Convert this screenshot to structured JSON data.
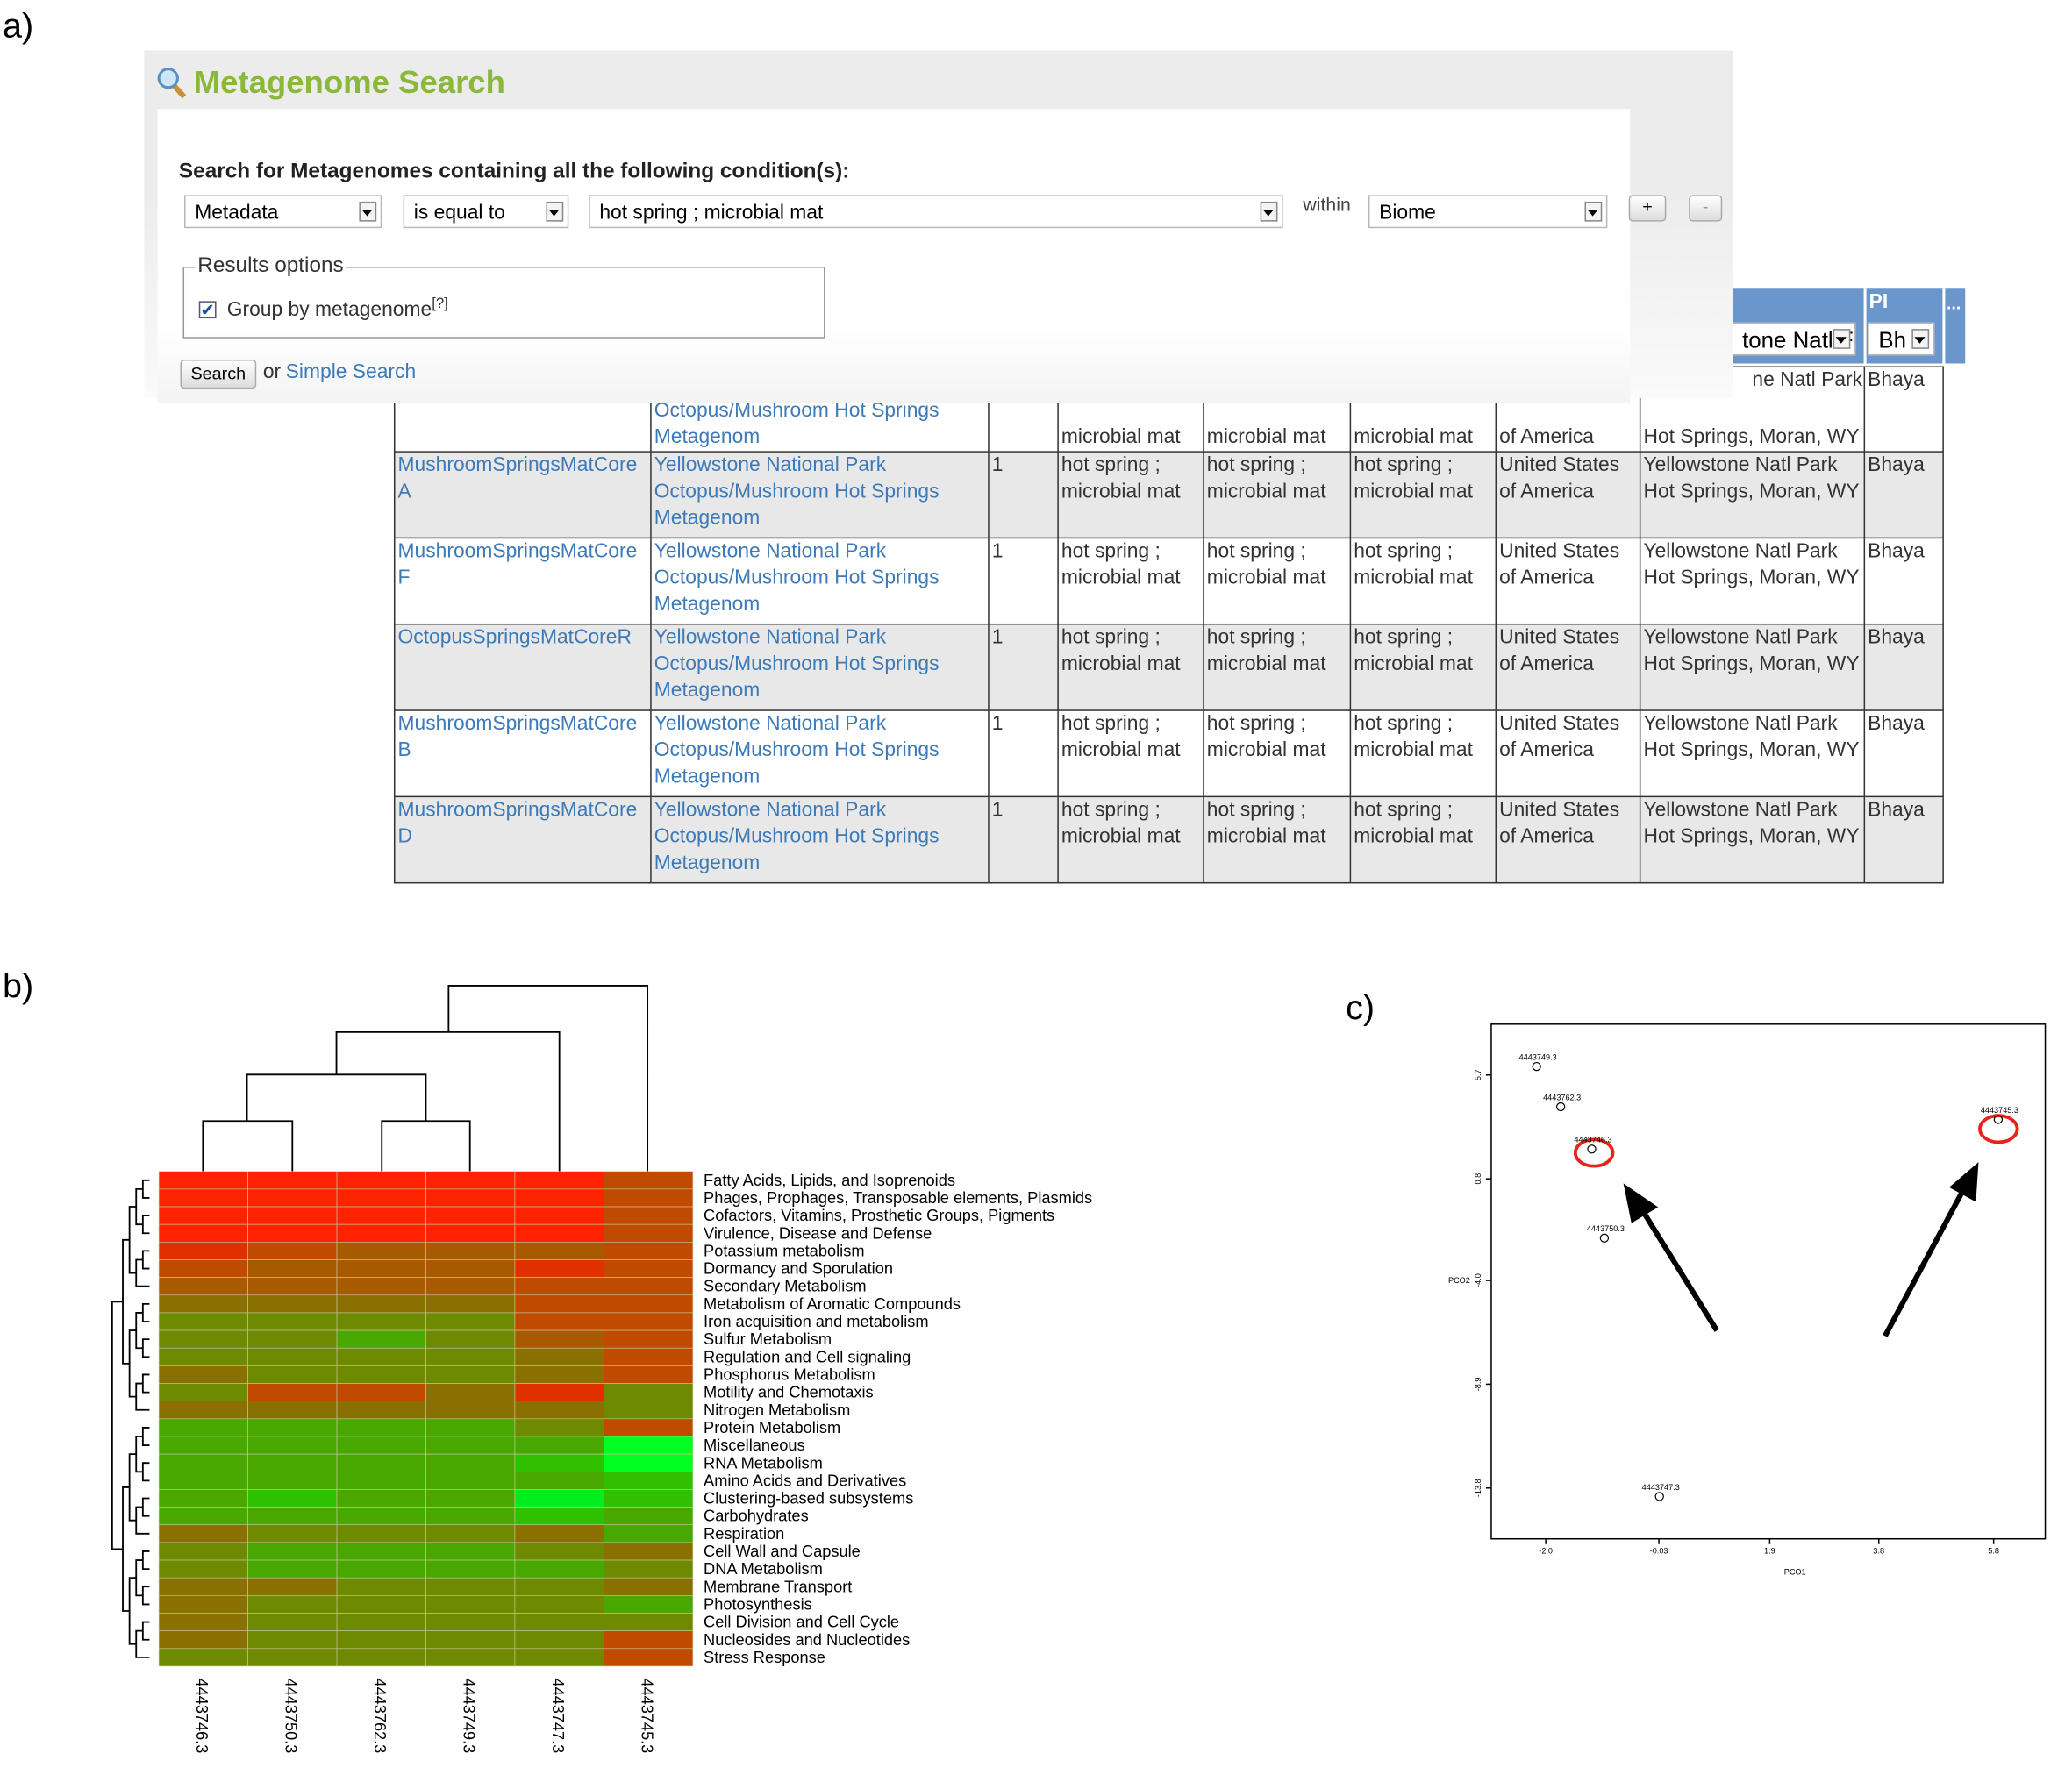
{
  "panel_labels": [
    "a)",
    "b)",
    "c)"
  ],
  "search": {
    "title": "Metagenome Search",
    "prompt": "Search for Metagenomes containing all the following condition(s):",
    "field": "Metadata",
    "operator": "is equal to",
    "value": "hot spring ; microbial mat",
    "within": "within",
    "scope": "Biome",
    "add": "+",
    "remove": "-",
    "results_legend": "Results options",
    "group_label": "Group by metagenome",
    "help": "[?]",
    "button": "Search",
    "or": "or",
    "simple_link": "Simple Search"
  },
  "table": {
    "header": {
      "pi": "PI",
      "more": "...",
      "filter_location": "tone Natl F",
      "filter_pi": "Bh",
      "location_fragment": "ne Natl Park",
      "pi_fragment": "Bhaya"
    },
    "partial_row": [
      null,
      "Octopus/Mushroom Hot Springs Metagenom",
      null,
      "microbial mat",
      "microbial mat",
      "microbial mat",
      "of America",
      "Hot Springs, Moran, WY",
      null
    ],
    "rows": [
      [
        "MushroomSpringsMatCoreA",
        "Yellowstone National Park Octopus/Mushroom Hot Springs Metagenom",
        "1",
        "hot spring ; microbial mat",
        "hot spring ; microbial mat",
        "hot spring ; microbial mat",
        "United States of America",
        "Yellowstone Natl Park Hot Springs, Moran, WY",
        "Bhaya"
      ],
      [
        "MushroomSpringsMatCoreF",
        "Yellowstone National Park Octopus/Mushroom Hot Springs Metagenom",
        "1",
        "hot spring ; microbial mat",
        "hot spring ; microbial mat",
        "hot spring ; microbial mat",
        "United States of America",
        "Yellowstone Natl Park Hot Springs, Moran, WY",
        "Bhaya"
      ],
      [
        "OctopusSpringsMatCoreR",
        "Yellowstone National Park Octopus/Mushroom Hot Springs Metagenom",
        "1",
        "hot spring ; microbial mat",
        "hot spring ; microbial mat",
        "hot spring ; microbial mat",
        "United States of America",
        "Yellowstone Natl Park Hot Springs, Moran, WY",
        "Bhaya"
      ],
      [
        "MushroomSpringsMatCoreB",
        "Yellowstone National Park Octopus/Mushroom Hot Springs Metagenom",
        "1",
        "hot spring ; microbial mat",
        "hot spring ; microbial mat",
        "hot spring ; microbial mat",
        "United States of America",
        "Yellowstone Natl Park Hot Springs, Moran, WY",
        "Bhaya"
      ],
      [
        "MushroomSpringsMatCoreD",
        "Yellowstone National Park Octopus/Mushroom Hot Springs Metagenom",
        "1",
        "hot spring ; microbial mat",
        "hot spring ; microbial mat",
        "hot spring ; microbial mat",
        "United States of America",
        "Yellowstone Natl Park Hot Springs, Moran, WY",
        "Bhaya"
      ]
    ]
  },
  "chart_data": [
    {
      "type": "heatmap",
      "columns": [
        "4443746.3",
        "4443750.3",
        "4443762.3",
        "4443749.3",
        "4443747.3",
        "4443745.3"
      ],
      "rows": [
        "Fatty Acids, Lipids, and Isoprenoids",
        "Phages, Prophages, Transposable elements, Plasmids",
        "Cofactors, Vitamins, Prosthetic Groups, Pigments",
        "Virulence, Disease and Defense",
        "Potassium metabolism",
        "Dormancy and Sporulation",
        "Secondary Metabolism",
        "Metabolism of Aromatic Compounds",
        "Iron acquisition and metabolism",
        "Sulfur Metabolism",
        "Regulation and Cell signaling",
        "Phosphorus Metabolism",
        "Motility and Chemotaxis",
        "Nitrogen Metabolism",
        "Protein Metabolism",
        "Miscellaneous",
        "RNA Metabolism",
        "Amino Acids and Derivatives",
        "Clustering-based subsystems",
        "Carbohydrates",
        "Respiration",
        "Cell Wall and Capsule",
        "DNA Metabolism",
        "Membrane Transport",
        "Photosynthesis",
        "Cell Division and Cell Cycle",
        "Nucleosides and Nucleotides",
        "Stress Response"
      ],
      "colors": [
        [
          "#ff2200",
          "#ff2200",
          "#ff2200",
          "#ff2200",
          "#ff2200",
          "#c04a00"
        ],
        [
          "#ff2200",
          "#ff2200",
          "#ff2200",
          "#ff2200",
          "#ff2200",
          "#c04a00"
        ],
        [
          "#ff2200",
          "#ff2200",
          "#ff2200",
          "#ff2200",
          "#ff2200",
          "#c04a00"
        ],
        [
          "#ff2200",
          "#ff2200",
          "#ff2200",
          "#ff2200",
          "#ff2200",
          "#c04a00"
        ],
        [
          "#e03000",
          "#c04a00",
          "#a85a00",
          "#a85a00",
          "#a85a00",
          "#c04a00"
        ],
        [
          "#c04a00",
          "#a85a00",
          "#a85a00",
          "#a85a00",
          "#e03000",
          "#c04a00"
        ],
        [
          "#a85a00",
          "#a85a00",
          "#a85a00",
          "#a85a00",
          "#c04a00",
          "#c04a00"
        ],
        [
          "#8a7000",
          "#8a7000",
          "#8a7000",
          "#8a7000",
          "#c04a00",
          "#c04a00"
        ],
        [
          "#6e8a00",
          "#6e8a00",
          "#6e8a00",
          "#6e8a00",
          "#c04a00",
          "#c04a00"
        ],
        [
          "#6e8a00",
          "#6e8a00",
          "#48a800",
          "#6e8a00",
          "#a85a00",
          "#c04a00"
        ],
        [
          "#6e8a00",
          "#6e8a00",
          "#6e8a00",
          "#6e8a00",
          "#8a7000",
          "#c04a00"
        ],
        [
          "#8a7000",
          "#6e8a00",
          "#6e8a00",
          "#6e8a00",
          "#8a7000",
          "#c04a00"
        ],
        [
          "#6e8a00",
          "#c04a00",
          "#c04a00",
          "#8a7000",
          "#e03000",
          "#6e8a00"
        ],
        [
          "#8a7000",
          "#8a7000",
          "#8a7000",
          "#8a7000",
          "#8a7000",
          "#6e8a00"
        ],
        [
          "#48a800",
          "#48a800",
          "#48a800",
          "#48a800",
          "#6e8a00",
          "#c04a00"
        ],
        [
          "#48a800",
          "#48a800",
          "#48a800",
          "#48a800",
          "#48a800",
          "#00ff20"
        ],
        [
          "#48a800",
          "#48a800",
          "#48a800",
          "#48a800",
          "#30c000",
          "#00ff20"
        ],
        [
          "#48a800",
          "#48a800",
          "#48a800",
          "#48a800",
          "#48a800",
          "#30c000"
        ],
        [
          "#48a800",
          "#30c000",
          "#48a800",
          "#48a800",
          "#00ee20",
          "#30c000"
        ],
        [
          "#48a800",
          "#48a800",
          "#48a800",
          "#48a800",
          "#30c000",
          "#48a800"
        ],
        [
          "#8a7000",
          "#6e8a00",
          "#6e8a00",
          "#6e8a00",
          "#8a7000",
          "#48a800"
        ],
        [
          "#6e8a00",
          "#48a800",
          "#48a800",
          "#48a800",
          "#6e8a00",
          "#8a7000"
        ],
        [
          "#6e8a00",
          "#48a800",
          "#48a800",
          "#48a800",
          "#48a800",
          "#6e8a00"
        ],
        [
          "#8a7000",
          "#8a7000",
          "#6e8a00",
          "#6e8a00",
          "#6e8a00",
          "#8a7000"
        ],
        [
          "#8a7000",
          "#6e8a00",
          "#6e8a00",
          "#6e8a00",
          "#6e8a00",
          "#48a800"
        ],
        [
          "#8a7000",
          "#6e8a00",
          "#6e8a00",
          "#6e8a00",
          "#6e8a00",
          "#6e8a00"
        ],
        [
          "#8a7000",
          "#6e8a00",
          "#6e8a00",
          "#6e8a00",
          "#6e8a00",
          "#c04a00"
        ],
        [
          "#6e8a00",
          "#6e8a00",
          "#6e8a00",
          "#6e8a00",
          "#6e8a00",
          "#c04a00"
        ]
      ]
    },
    {
      "type": "scatter",
      "x_label": "PCO1",
      "y_label": "PCO2",
      "color": "#000000",
      "labels": [
        "4443749.3",
        "4443762.3",
        "4443746.3",
        "4443750.3",
        "4443747.3",
        "4443745.3"
      ],
      "x": [
        -2.16,
        -1.74,
        -1.2,
        -0.98,
        -0.02,
        5.88
      ],
      "values": [
        6.1,
        4.2,
        2.2,
        -2.0,
        -14.2,
        3.6
      ],
      "xlim": [
        -2.95,
        6.7
      ],
      "ylim": [
        -16.2,
        8.1
      ],
      "xticks": [
        {
          "value": -2,
          "label": "-2.0"
        },
        -0.03,
        1.9,
        3.8,
        5.8
      ],
      "yticks": [
        5.7,
        0.8,
        {
          "value": -4,
          "label": "-4.0"
        },
        -8.9,
        -13.8
      ]
    }
  ]
}
